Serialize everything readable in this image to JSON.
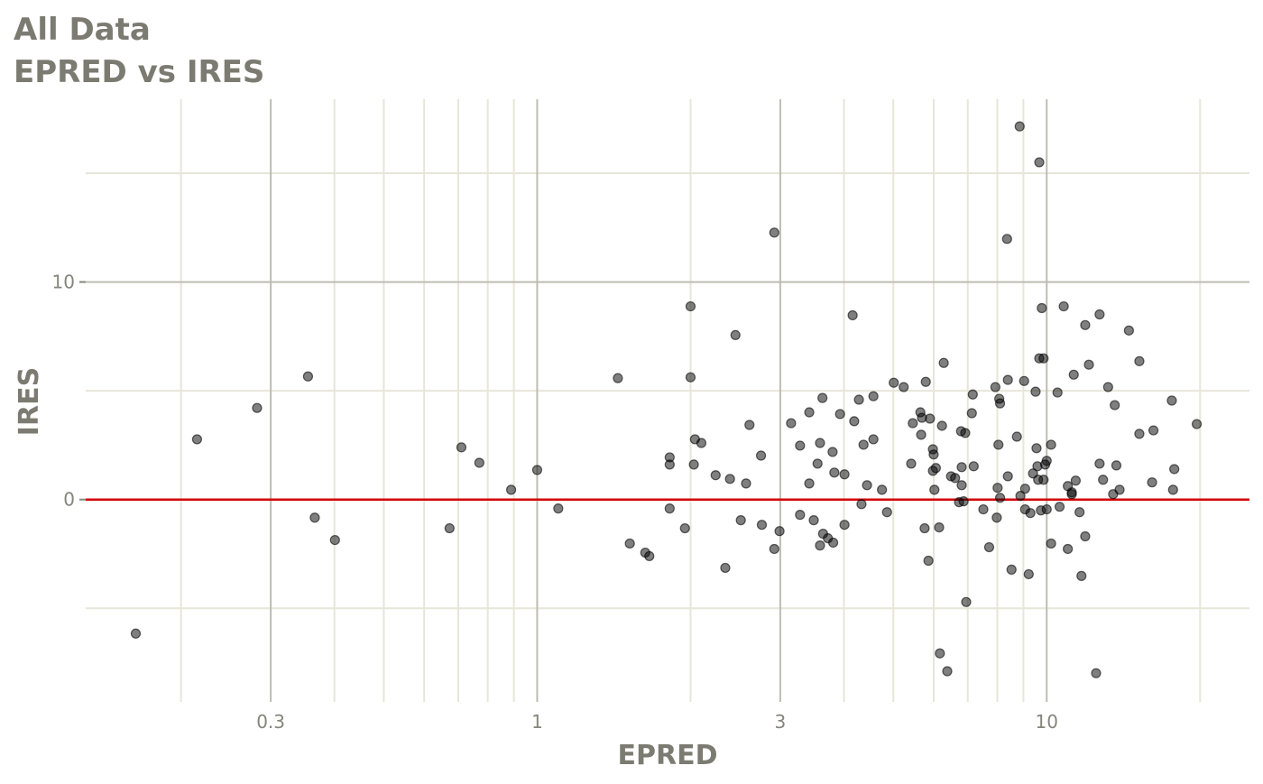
{
  "chart_data": {
    "type": "scatter",
    "title": "All Data",
    "subtitle": "EPRED vs IRES",
    "xlabel": "EPRED",
    "ylabel": "IRES",
    "xscale": "log",
    "xlim": [
      0.13,
      25
    ],
    "ylim": [
      -9.3,
      18.4
    ],
    "xticks": [
      0.3,
      1,
      3,
      10
    ],
    "yticks": [
      0,
      10
    ],
    "x_minor_grid": [
      0.2,
      0.4,
      0.5,
      0.6,
      0.7,
      0.8,
      0.9,
      2,
      4,
      5,
      6,
      7,
      8,
      9,
      20
    ],
    "y_minor_grid": [
      -5,
      5,
      15
    ],
    "grid": true,
    "hline": 0,
    "hline_color": "#d40000",
    "color": "#000000",
    "x": [
      0.163,
      0.215,
      0.282,
      0.355,
      0.366,
      0.401,
      0.673,
      0.71,
      0.77,
      0.889,
      1.0,
      1.1,
      1.44,
      1.52,
      1.63,
      1.66,
      1.82,
      1.82,
      1.82,
      1.95,
      2.0,
      2.0,
      2.03,
      2.04,
      2.1,
      2.24,
      2.34,
      2.39,
      2.45,
      2.51,
      2.57,
      2.61,
      2.75,
      2.76,
      2.92,
      2.92,
      2.99,
      3.15,
      3.28,
      3.28,
      3.42,
      3.42,
      3.49,
      3.55,
      3.59,
      3.59,
      3.63,
      3.64,
      3.72,
      3.8,
      3.81,
      3.83,
      3.93,
      4.01,
      4.01,
      4.16,
      4.19,
      4.28,
      4.33,
      4.37,
      4.44,
      4.57,
      4.57,
      4.75,
      4.86,
      5.01,
      5.24,
      5.42,
      5.46,
      5.65,
      5.67,
      5.69,
      5.76,
      5.79,
      5.86,
      5.9,
      5.98,
      5.98,
      6.0,
      6.02,
      6.06,
      6.15,
      6.17,
      6.23,
      6.28,
      6.38,
      6.49,
      6.61,
      6.73,
      6.79,
      6.81,
      6.81,
      6.87,
      6.92,
      6.95,
      7.13,
      7.16,
      7.19,
      7.51,
      7.71,
      7.93,
      7.98,
      8.01,
      8.04,
      8.07,
      8.1,
      8.1,
      8.36,
      8.39,
      8.39,
      8.53,
      8.74,
      8.85,
      8.88,
      9.03,
      9.07,
      9.07,
      9.22,
      9.29,
      9.4,
      9.51,
      9.55,
      9.59,
      9.62,
      9.67,
      9.67,
      9.74,
      9.78,
      9.86,
      9.86,
      9.93,
      10.0,
      10.0,
      10.2,
      10.2,
      10.5,
      10.6,
      10.8,
      11.0,
      11.0,
      11.2,
      11.2,
      11.3,
      11.4,
      11.6,
      11.7,
      11.9,
      11.9,
      12.1,
      12.5,
      12.7,
      12.7,
      12.9,
      13.2,
      13.5,
      13.6,
      13.7,
      13.9,
      14.5,
      15.2,
      15.2,
      16.1,
      16.2,
      17.6,
      17.7,
      17.8,
      19.7
    ],
    "values": [
      -6.16,
      2.77,
      4.21,
      5.66,
      -0.83,
      -1.86,
      -1.32,
      2.4,
      1.69,
      0.45,
      1.36,
      -0.41,
      5.58,
      -2.02,
      -2.44,
      -2.6,
      1.94,
      1.61,
      -0.41,
      -1.32,
      8.88,
      5.62,
      1.61,
      2.77,
      2.6,
      1.12,
      -3.14,
      0.95,
      7.56,
      -0.95,
      0.74,
      3.43,
      2.02,
      -1.16,
      12.27,
      -2.27,
      -1.45,
      3.51,
      2.48,
      -0.7,
      4.01,
      0.74,
      -0.95,
      1.65,
      2.6,
      -2.11,
      4.67,
      -1.57,
      -1.78,
      2.19,
      -1.98,
      1.24,
      3.93,
      1.16,
      -1.16,
      8.47,
      3.6,
      4.59,
      -0.21,
      2.52,
      0.66,
      4.75,
      2.77,
      0.45,
      -0.58,
      5.37,
      5.17,
      1.65,
      3.51,
      4.01,
      2.98,
      3.76,
      -1.32,
      5.41,
      -2.81,
      3.72,
      2.31,
      1.32,
      2.07,
      0.45,
      1.45,
      -1.28,
      -7.07,
      3.39,
      6.28,
      -7.89,
      1.07,
      0.99,
      -0.12,
      3.14,
      1.49,
      0.66,
      -0.08,
      3.06,
      -4.71,
      3.97,
      4.83,
      1.53,
      -0.45,
      -2.19,
      5.17,
      -0.83,
      0.54,
      2.52,
      4.63,
      4.42,
      0.08,
      11.98,
      5.5,
      1.07,
      -3.22,
      2.89,
      17.15,
      0.17,
      5.45,
      0.5,
      -0.45,
      -3.43,
      -0.62,
      1.2,
      4.96,
      2.36,
      1.53,
      0.91,
      15.5,
      6.49,
      -0.5,
      8.8,
      6.49,
      0.91,
      1.61,
      1.78,
      -0.45,
      -2.02,
      2.52,
      4.92,
      -0.33,
      8.88,
      0.62,
      -2.27,
      0.25,
      0.33,
      5.74,
      0.87,
      -0.58,
      -3.51,
      -1.69,
      8.02,
      6.2,
      -7.98,
      1.65,
      8.51,
      0.91,
      5.17,
      0.25,
      4.34,
      1.57,
      0.45,
      7.77,
      3.02,
      6.36,
      0.79,
      3.18,
      4.55,
      0.45,
      1.4,
      3.47
    ]
  }
}
